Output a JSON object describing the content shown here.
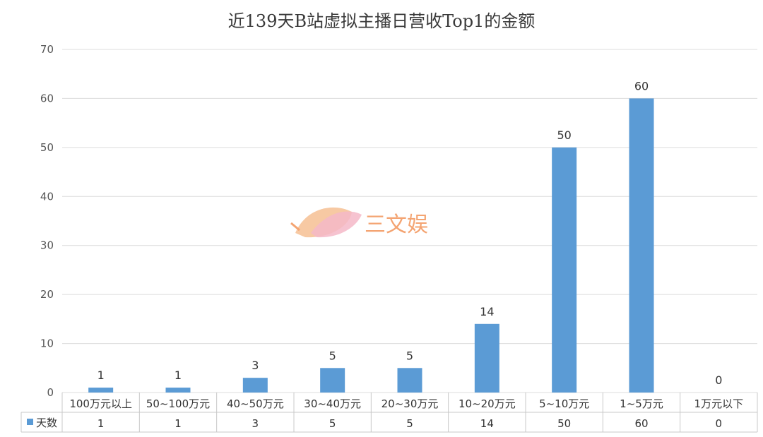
{
  "title": "近139天B站虚拟主播日营收Top1的金额",
  "watermark": {
    "text": "三文娱",
    "color": "#f4a472"
  },
  "colors": {
    "bar": "#5b9bd5",
    "grid": "#dcdcdc"
  },
  "chart_data": {
    "type": "bar",
    "title": "近139天B站虚拟主播日营收Top1的金额",
    "xlabel": "",
    "ylabel": "",
    "ylim": [
      0,
      70
    ],
    "yticks": [
      0,
      10,
      20,
      30,
      40,
      50,
      60,
      70
    ],
    "grid": true,
    "legend_placement": "table-left",
    "categories": [
      "100万元以上",
      "50~100万元",
      "40~50万元",
      "30~40万元",
      "20~30万元",
      "10~20万元",
      "5~10万元",
      "1~5万元",
      "1万元以下"
    ],
    "series": [
      {
        "name": "天数",
        "values": [
          1,
          1,
          3,
          5,
          5,
          14,
          50,
          60,
          0
        ]
      }
    ],
    "data_table": true
  }
}
